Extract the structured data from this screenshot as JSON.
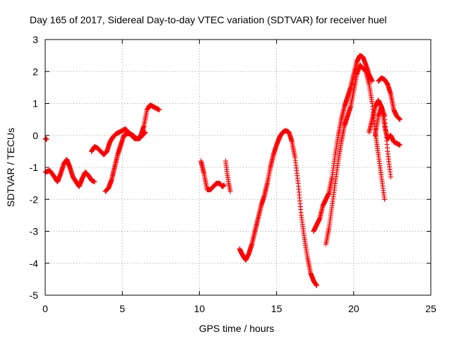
{
  "chart_data": {
    "type": "scatter",
    "title": "Day 165 of 2017, Sidereal Day-to-day VTEC variation (SDTVAR) for receiver huel",
    "xlabel": "GPS time / hours",
    "ylabel": "SDTVAR / TECUs",
    "xlim": [
      0,
      25
    ],
    "ylim": [
      -5,
      3
    ],
    "xticks": [
      0,
      5,
      10,
      15,
      20,
      25
    ],
    "yticks": [
      -5,
      -4,
      -3,
      -2,
      -1,
      0,
      1,
      2,
      3
    ],
    "xtick_labels": [
      "0",
      "5",
      "10",
      "15",
      "20",
      "25"
    ],
    "ytick_labels": [
      "-5",
      "-4",
      "-3",
      "-2",
      "-1",
      "0",
      "1",
      "2",
      "3"
    ],
    "grid": true,
    "marker": "plus",
    "color": "#ff0000",
    "series": [
      {
        "name": "seg0",
        "x": [
          0.0,
          0.1
        ],
        "y": [
          -0.1,
          -0.12
        ]
      },
      {
        "name": "seg1",
        "x": [
          0.0,
          0.3,
          0.6,
          0.8,
          1.0,
          1.2,
          1.4,
          1.6,
          1.8,
          2.0,
          2.2,
          2.4,
          2.6,
          2.8,
          3.0,
          3.2
        ],
        "y": [
          -1.15,
          -1.1,
          -1.3,
          -1.45,
          -1.2,
          -0.9,
          -0.75,
          -1.0,
          -1.3,
          -1.45,
          -1.6,
          -1.35,
          -1.15,
          -1.25,
          -1.4,
          -1.45
        ]
      },
      {
        "name": "seg2",
        "x": [
          3.0,
          3.2,
          3.4,
          3.6,
          3.8,
          4.0,
          4.2,
          4.4,
          4.6,
          4.8,
          5.0,
          5.2,
          5.4,
          5.6,
          5.8,
          6.0,
          6.2,
          6.4,
          6.6,
          6.8,
          7.0,
          7.2,
          7.4
        ],
        "y": [
          -0.5,
          -0.35,
          -0.4,
          -0.5,
          -0.6,
          -0.5,
          -0.2,
          -0.05,
          0.05,
          0.1,
          0.15,
          0.2,
          0.1,
          0.0,
          -0.1,
          -0.1,
          0.0,
          0.3,
          0.8,
          0.95,
          0.9,
          0.85,
          0.8
        ]
      },
      {
        "name": "seg3",
        "x": [
          3.9,
          4.1,
          4.3,
          4.5,
          4.7,
          4.9,
          5.1,
          5.3,
          5.5,
          5.7,
          5.9,
          6.1,
          6.3,
          6.5
        ],
        "y": [
          -1.75,
          -1.65,
          -1.4,
          -1.0,
          -0.6,
          -0.3,
          0.0,
          0.05,
          0.05,
          0.0,
          -0.1,
          -0.1,
          0.0,
          0.1
        ]
      },
      {
        "name": "seg4",
        "x": [
          10.1,
          10.3,
          10.5,
          10.7,
          10.9,
          11.1,
          11.3,
          11.5,
          11.6
        ],
        "y": [
          -0.8,
          -1.2,
          -1.7,
          -1.7,
          -1.6,
          -1.5,
          -1.5,
          -1.6,
          -1.55
        ]
      },
      {
        "name": "seg5",
        "x": [
          11.7,
          11.8,
          11.9,
          12.0
        ],
        "y": [
          -0.8,
          -1.2,
          -1.5,
          -1.75
        ]
      },
      {
        "name": "seg6",
        "x": [
          12.6,
          12.8,
          13.0,
          13.2,
          13.4,
          13.6,
          13.8,
          14.0,
          14.2,
          14.4,
          14.6,
          14.8,
          15.0,
          15.2,
          15.4,
          15.6,
          15.8,
          16.0,
          16.2,
          16.4,
          16.6,
          16.8,
          17.0,
          17.2,
          17.4,
          17.6
        ],
        "y": [
          -3.55,
          -3.75,
          -3.9,
          -3.7,
          -3.4,
          -3.0,
          -2.6,
          -2.2,
          -1.9,
          -1.5,
          -1.0,
          -0.6,
          -0.3,
          -0.05,
          0.1,
          0.15,
          0.1,
          -0.2,
          -0.7,
          -1.5,
          -2.5,
          -3.2,
          -3.8,
          -4.3,
          -4.55,
          -4.7
        ]
      },
      {
        "name": "seg7",
        "x": [
          17.4,
          17.6,
          17.8,
          18.0,
          18.2,
          18.4,
          18.6,
          18.8,
          19.0,
          19.2,
          19.4,
          19.6,
          19.8,
          20.0,
          20.2,
          20.4,
          20.6,
          20.8,
          21.0,
          21.2
        ],
        "y": [
          -3.0,
          -2.8,
          -2.6,
          -2.2,
          -2.0,
          -1.8,
          -1.3,
          -0.6,
          0.0,
          0.5,
          0.9,
          1.2,
          1.5,
          1.9,
          2.3,
          2.5,
          2.45,
          2.2,
          1.9,
          1.7
        ]
      },
      {
        "name": "seg8",
        "x": [
          18.2,
          18.4,
          18.6,
          18.8,
          19.0,
          19.2,
          19.4,
          19.6,
          19.8,
          20.0,
          20.2,
          20.4,
          20.6,
          20.8,
          21.0,
          21.2,
          21.4,
          21.6,
          21.8,
          22.0
        ],
        "y": [
          -3.4,
          -2.9,
          -2.2,
          -1.5,
          -0.8,
          -0.2,
          0.3,
          0.6,
          0.9,
          1.4,
          1.9,
          2.2,
          2.1,
          2.0,
          1.6,
          1.0,
          0.1,
          -0.6,
          -1.3,
          -2.0
        ]
      },
      {
        "name": "seg9",
        "x": [
          21.0,
          21.2,
          21.4,
          21.6,
          21.8,
          22.0,
          22.2
        ],
        "y": [
          0.1,
          0.5,
          0.9,
          1.1,
          0.9,
          0.3,
          -0.1
        ]
      },
      {
        "name": "seg10",
        "x": [
          21.4,
          21.6,
          21.8,
          22.0,
          22.2,
          22.4
        ],
        "y": [
          0.0,
          0.6,
          0.9,
          0.6,
          -0.5,
          -1.3
        ]
      },
      {
        "name": "seg11",
        "x": [
          21.6,
          21.8,
          22.0,
          22.2,
          22.4,
          22.6,
          22.8,
          23.0
        ],
        "y": [
          1.7,
          1.8,
          1.75,
          1.6,
          1.3,
          0.8,
          0.6,
          0.5
        ]
      },
      {
        "name": "seg12",
        "x": [
          22.2,
          22.4,
          22.6,
          22.8,
          23.0
        ],
        "y": [
          -0.1,
          0.0,
          -0.2,
          -0.25,
          -0.3
        ]
      }
    ]
  }
}
